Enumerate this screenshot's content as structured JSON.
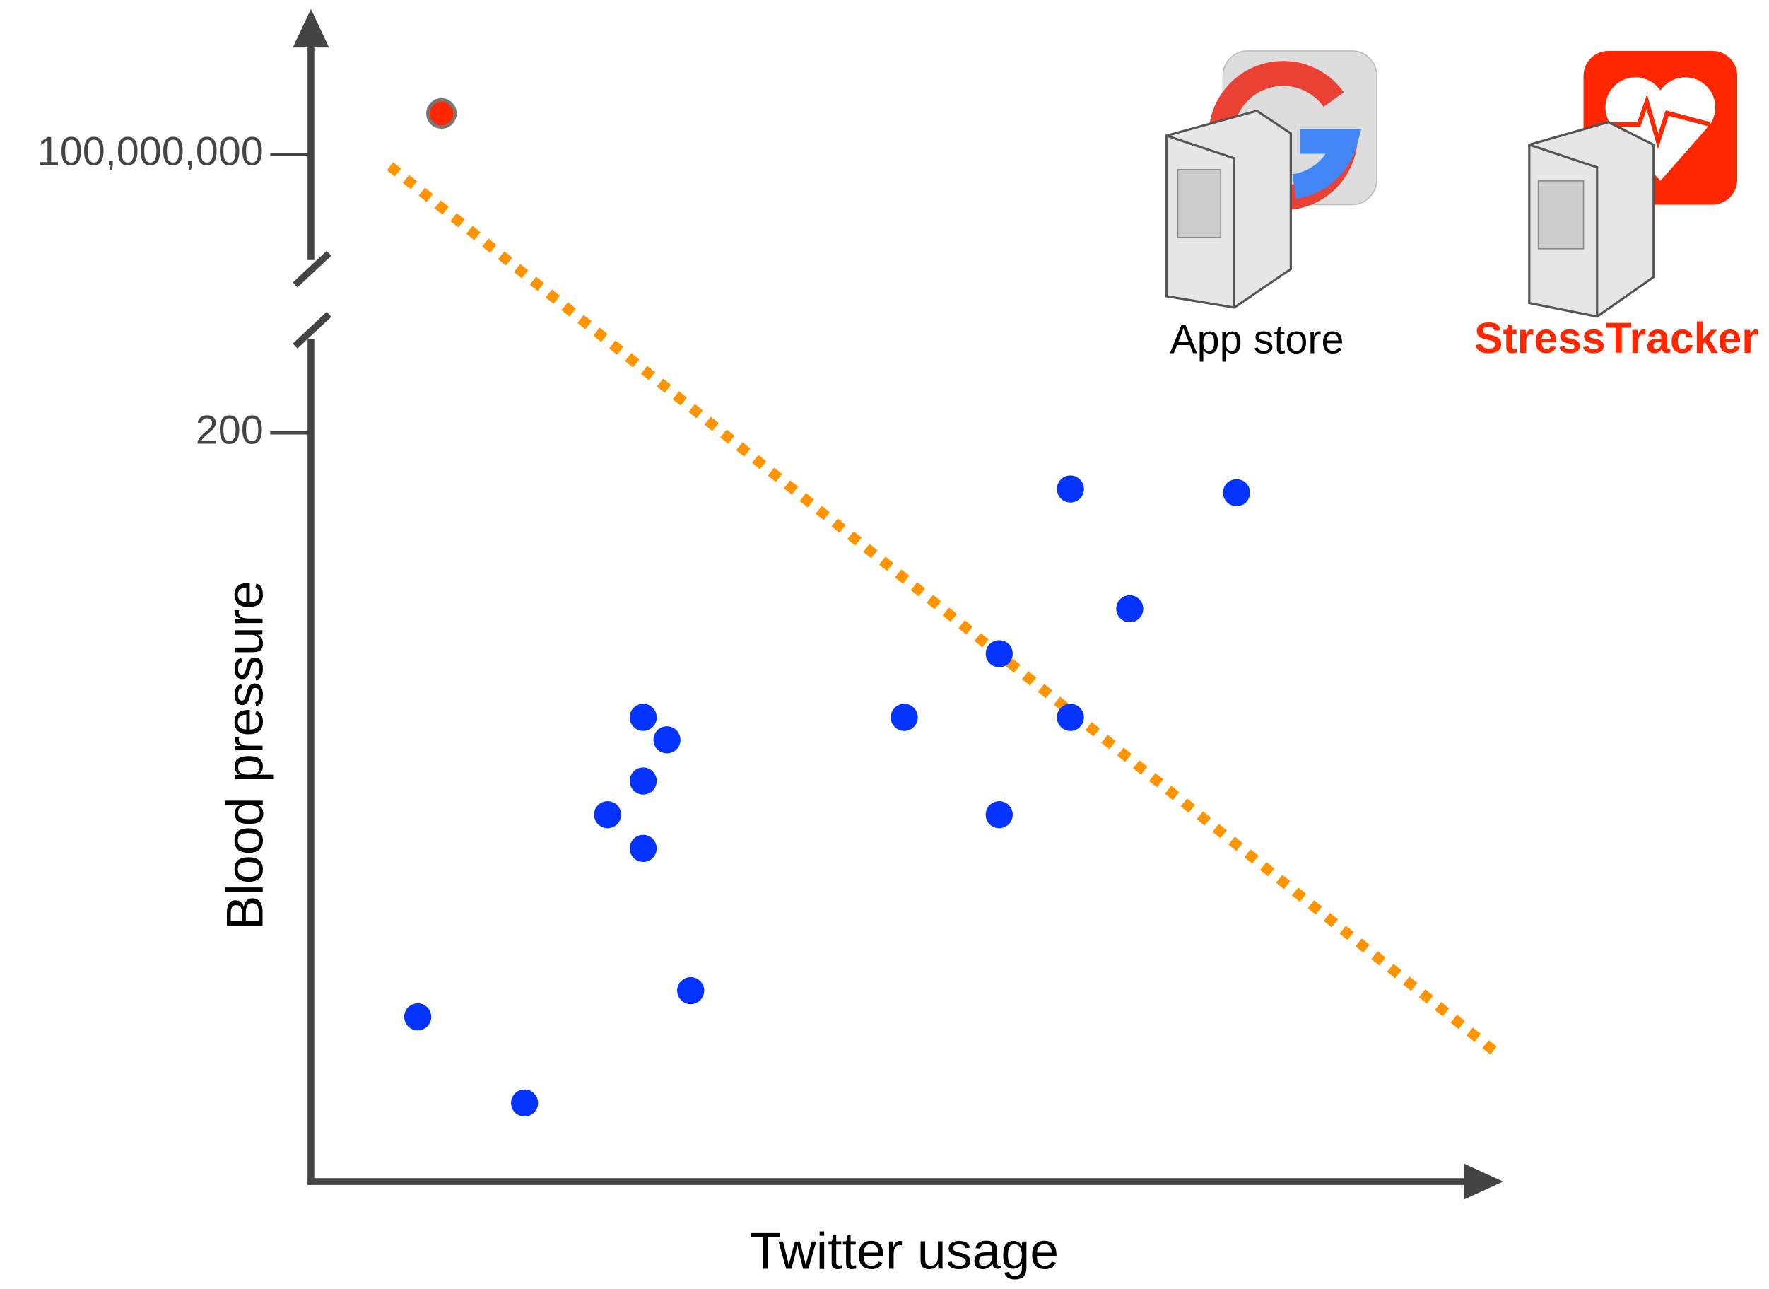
{
  "chart_data": {
    "type": "scatter",
    "x_label": "Twitter usage",
    "y_label": "Blood pressure",
    "xlim": [
      0,
      100
    ],
    "ylim": [
      0,
      225
    ],
    "yticks": [
      200
    ],
    "upper_ylim": [
      60000000,
      147000000
    ],
    "upper_yticks": [
      {
        "value": 100000000,
        "label": "100,000,000"
      }
    ],
    "series": [
      {
        "color": "#0433ff",
        "x": [
          9,
          18,
          25,
          28,
          28,
          28,
          30,
          32,
          50,
          58,
          58,
          64,
          64,
          69,
          78
        ],
        "values": [
          44,
          21,
          98,
          124,
          107,
          89,
          118,
          51,
          124,
          141,
          98,
          185,
          124,
          153,
          184
        ]
      },
      {
        "color": "#ff2600",
        "axis": "upper",
        "x": [
          11
        ],
        "values": [
          114000000
        ]
      }
    ]
  },
  "icons": [
    {
      "label": "App store"
    },
    {
      "label": "StressTracker"
    }
  ]
}
